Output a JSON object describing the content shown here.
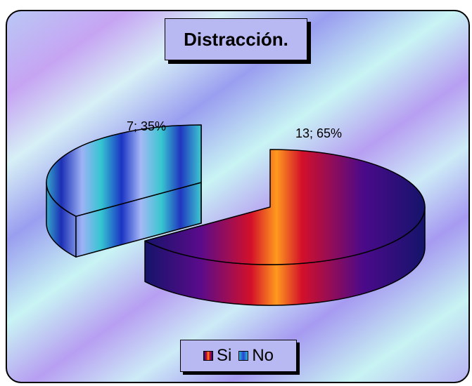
{
  "chart_data": {
    "type": "pie",
    "title": "Distracción.",
    "categories": [
      "Si",
      "No"
    ],
    "values": [
      13,
      7
    ],
    "percentages": [
      65,
      35
    ],
    "data_labels": [
      "13; 65%",
      "7; 35%"
    ],
    "legend": {
      "entries": [
        "Si",
        "No"
      ],
      "position": "bottom"
    },
    "style": "3d-exploded"
  }
}
